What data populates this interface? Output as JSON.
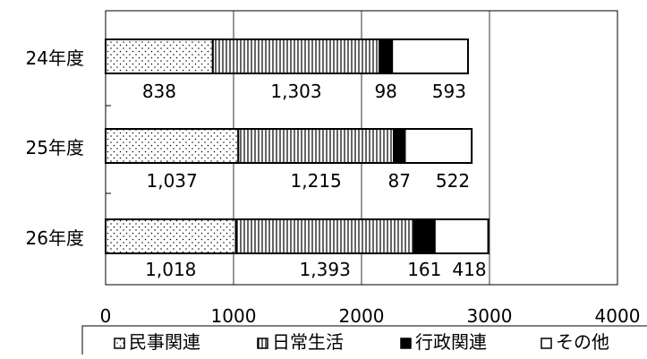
{
  "chart_data": {
    "type": "bar",
    "orientation": "horizontal",
    "stacked": true,
    "title": "",
    "xlabel": "",
    "ylabel": "",
    "xlim": [
      0,
      4000
    ],
    "xticks": [
      "0",
      "1000",
      "2000",
      "3000",
      "4000"
    ],
    "grid": "vertical",
    "legend_position": "bottom",
    "categories": [
      "24年度",
      "25年度",
      "26年度"
    ],
    "series": [
      {
        "name": "民事関連",
        "pattern": "dots",
        "color": "#ffffff",
        "values": [
          838,
          1037,
          1018
        ],
        "labels": [
          "838",
          "1,037",
          "1,018"
        ]
      },
      {
        "name": "日常生活",
        "pattern": "vertical-lines",
        "color": "#ffffff",
        "values": [
          1303,
          1215,
          1393
        ],
        "labels": [
          "1,303",
          "1,215",
          "1,393"
        ]
      },
      {
        "name": "行政関連",
        "pattern": "solid",
        "color": "#000000",
        "values": [
          98,
          87,
          161
        ],
        "labels": [
          "98",
          "87",
          "161"
        ]
      },
      {
        "name": "その他",
        "pattern": "none",
        "color": "#ffffff",
        "values": [
          593,
          522,
          418
        ],
        "labels": [
          "593",
          "522",
          "418"
        ]
      }
    ]
  }
}
